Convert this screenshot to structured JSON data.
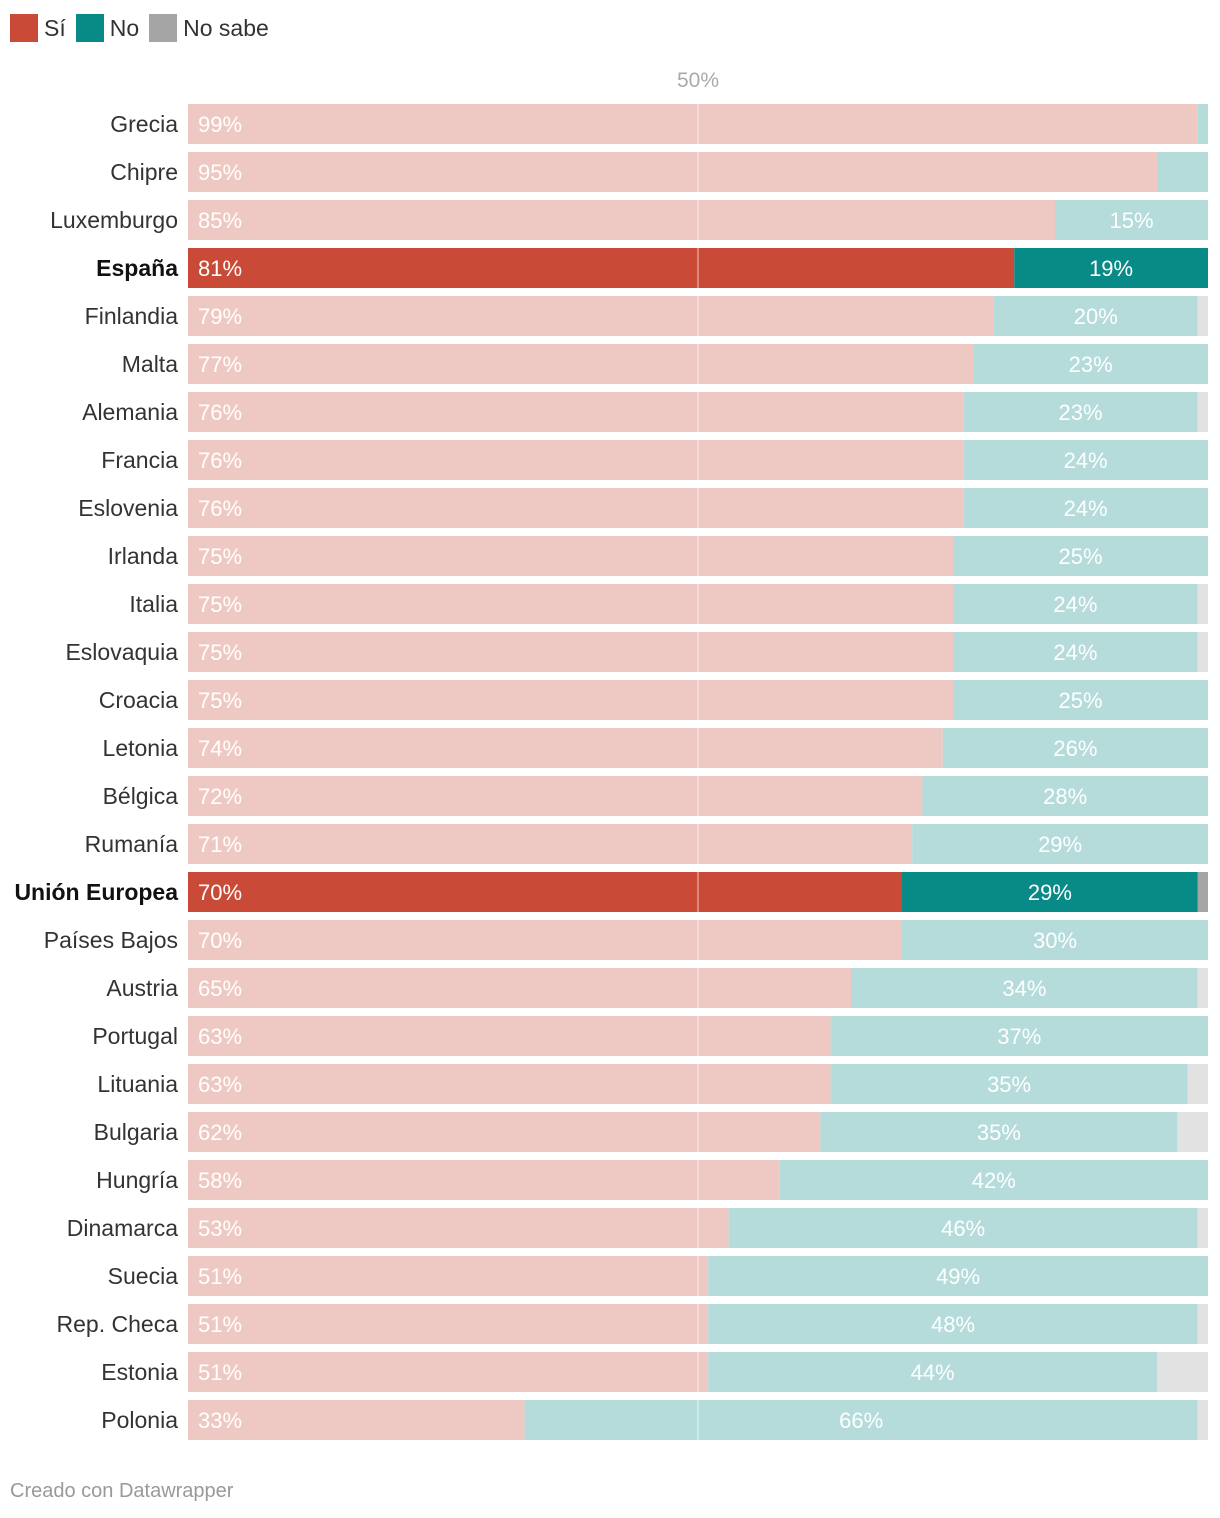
{
  "legend": [
    {
      "label": "Sí",
      "color": "#c94b37"
    },
    {
      "label": "No",
      "color": "#088a86"
    },
    {
      "label": "No sabe",
      "color": "#a5a5a5"
    }
  ],
  "footer": "Creado con Datawrapper",
  "chart_data": {
    "type": "bar",
    "orientation": "horizontal",
    "stacked": true,
    "reference_line": {
      "value": 50,
      "label": "50%"
    },
    "xlim": [
      0,
      100
    ],
    "categories": [
      "Grecia",
      "Chipre",
      "Luxemburgo",
      "España",
      "Finlandia",
      "Malta",
      "Alemania",
      "Francia",
      "Eslovenia",
      "Irlanda",
      "Italia",
      "Eslovaquia",
      "Croacia",
      "Letonia",
      "Bélgica",
      "Rumanía",
      "Unión Europea",
      "Países Bajos",
      "Austria",
      "Portugal",
      "Lituania",
      "Bulgaria",
      "Hungría",
      "Dinamarca",
      "Suecia",
      "Rep. Checa",
      "Estonia",
      "Polonia"
    ],
    "highlighted": [
      "España",
      "Unión Europea"
    ],
    "series": [
      {
        "name": "Sí",
        "color": "#c94b37",
        "light_color": "#eec9c3",
        "values": [
          99,
          95,
          85,
          81,
          79,
          77,
          76,
          76,
          76,
          75,
          75,
          75,
          75,
          74,
          72,
          71,
          70,
          70,
          65,
          63,
          63,
          62,
          58,
          53,
          51,
          51,
          51,
          33
        ],
        "labels": [
          "99%",
          "95%",
          "85%",
          "81%",
          "79%",
          "77%",
          "76%",
          "76%",
          "76%",
          "75%",
          "75%",
          "75%",
          "75%",
          "74%",
          "72%",
          "71%",
          "70%",
          "70%",
          "65%",
          "63%",
          "63%",
          "62%",
          "58%",
          "53%",
          "51%",
          "51%",
          "51%",
          "33%"
        ]
      },
      {
        "name": "No",
        "color": "#088a86",
        "light_color": "#b5dcdb",
        "values": [
          1,
          5,
          15,
          19,
          20,
          23,
          23,
          24,
          24,
          25,
          24,
          24,
          25,
          26,
          28,
          29,
          29,
          30,
          34,
          37,
          35,
          35,
          42,
          46,
          49,
          48,
          44,
          66
        ],
        "labels": [
          "",
          "",
          "15%",
          "19%",
          "20%",
          "23%",
          "23%",
          "24%",
          "24%",
          "25%",
          "24%",
          "24%",
          "25%",
          "26%",
          "28%",
          "29%",
          "29%",
          "30%",
          "34%",
          "37%",
          "35%",
          "35%",
          "42%",
          "46%",
          "49%",
          "48%",
          "44%",
          "66%"
        ]
      },
      {
        "name": "No sabe",
        "color": "#a5a5a5",
        "light_color": "#e2e2e2",
        "values": [
          0,
          0,
          0,
          0,
          1,
          0,
          1,
          0,
          0,
          0,
          1,
          1,
          0,
          0,
          0,
          0,
          1,
          0,
          1,
          0,
          2,
          3,
          0,
          1,
          0,
          1,
          5,
          1
        ],
        "labels": [
          "",
          "",
          "",
          "",
          "",
          "",
          "",
          "",
          "",
          "",
          "",
          "",
          "",
          "",
          "",
          "",
          "",
          "",
          "",
          "",
          "",
          "",
          "",
          "",
          "",
          "",
          "",
          ""
        ]
      }
    ]
  }
}
